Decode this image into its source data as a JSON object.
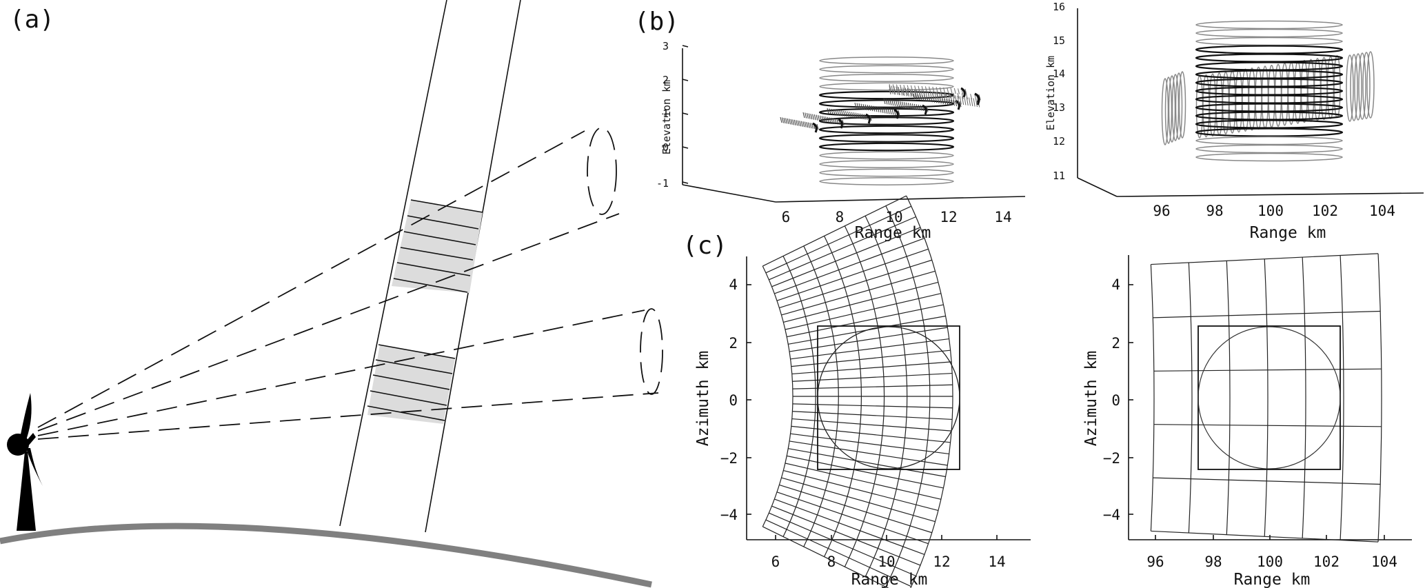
{
  "panels": {
    "a": {
      "label": "(a)"
    },
    "b": {
      "label": "(b)",
      "left": {
        "ylabel": "Elevation km",
        "xlabel": "Range km",
        "yticks": [
          "3",
          "2",
          "1",
          "0",
          "-1"
        ],
        "xticks": [
          "6",
          "8",
          "10",
          "12",
          "14"
        ]
      },
      "right": {
        "ylabel": "Elevation km",
        "xlabel": "Range km",
        "yticks": [
          "16",
          "15",
          "14",
          "13",
          "12",
          "11"
        ],
        "xticks": [
          "96",
          "98",
          "100",
          "102",
          "104"
        ]
      }
    },
    "c": {
      "label": "(c)",
      "left": {
        "ylabel": "Azimuth km",
        "xlabel": "Range km",
        "yticks": [
          "4",
          "2",
          "0",
          "−2",
          "−4"
        ],
        "xticks": [
          "6",
          "8",
          "10",
          "12",
          "14"
        ]
      },
      "right": {
        "ylabel": "Azimuth km",
        "xlabel": "Range km",
        "yticks": [
          "4",
          "2",
          "0",
          "−2",
          "−4"
        ],
        "xticks": [
          "96",
          "98",
          "100",
          "102",
          "104"
        ]
      }
    }
  },
  "colors": {
    "ink": "#111111",
    "ground": "#808080",
    "shaded_gate": "#dcdcdc",
    "ring_light": "#888888"
  },
  "icons": [
    "radar-dish-icon",
    "radar-tower-icon"
  ]
}
